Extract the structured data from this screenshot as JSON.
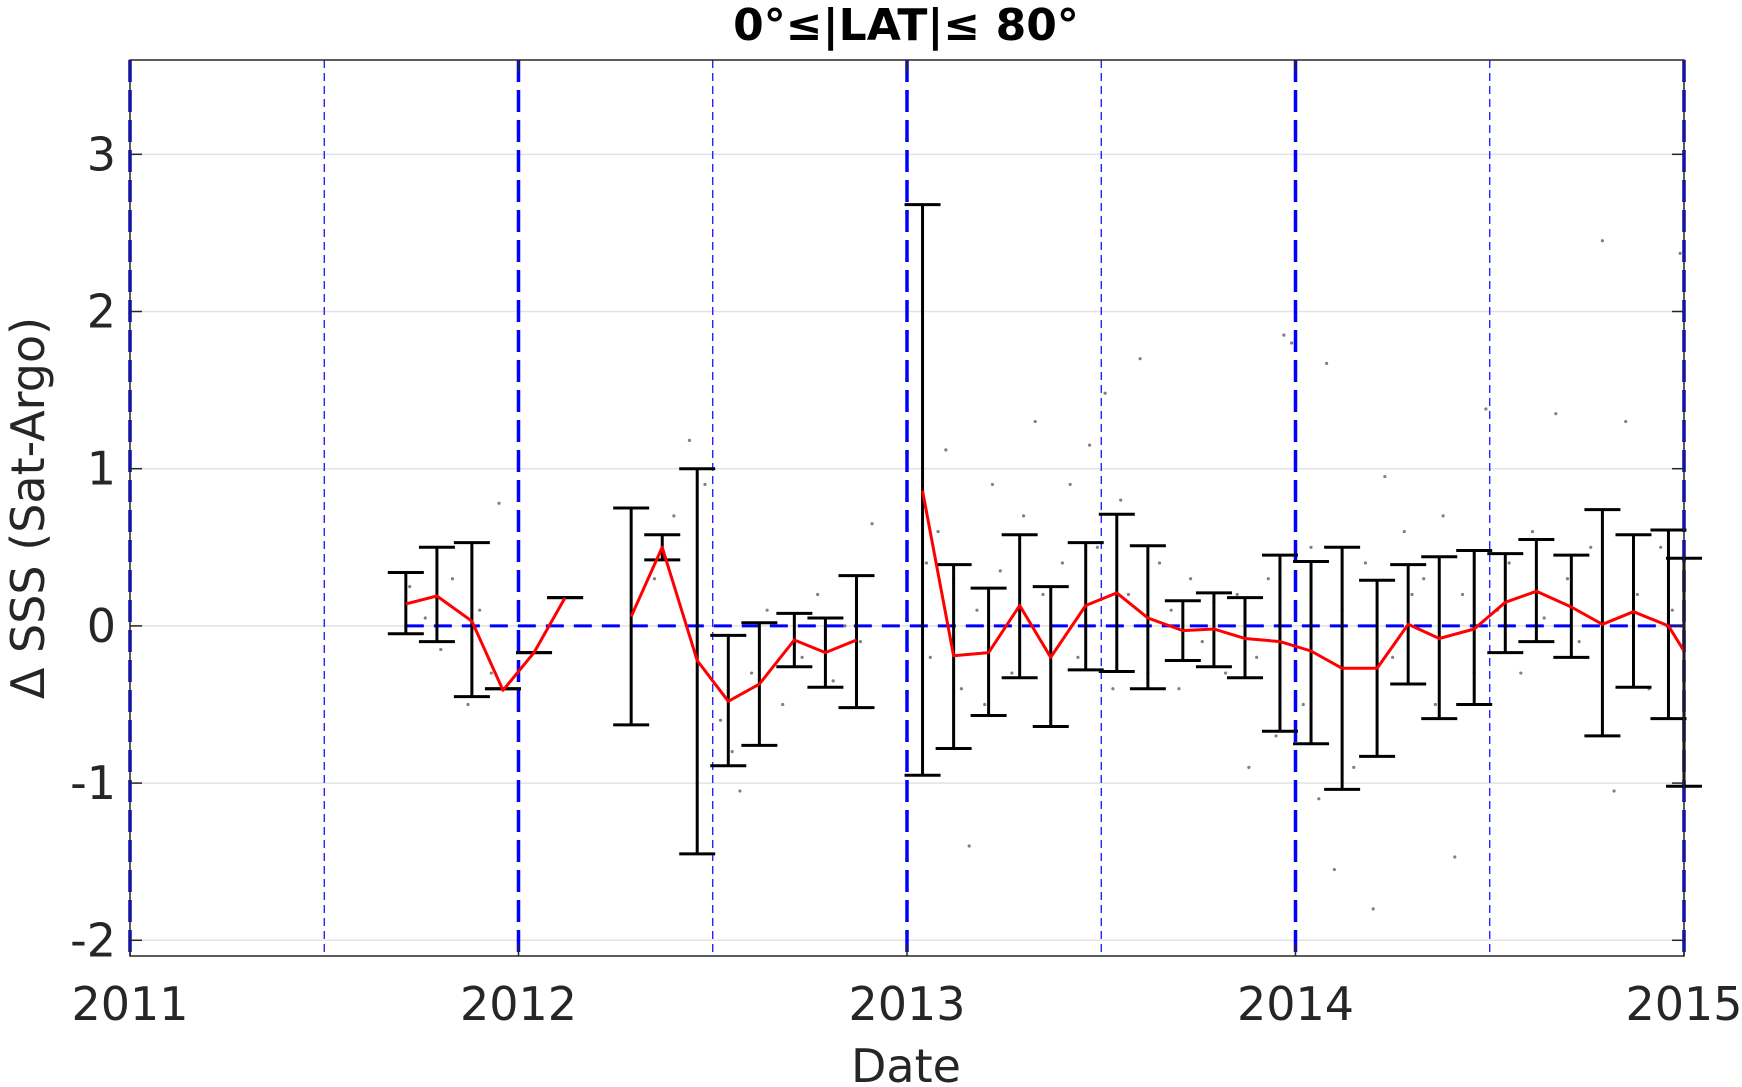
{
  "chart_data": {
    "type": "errorbar",
    "title": "0°≤|LAT|≤ 80°",
    "xlabel": "Date",
    "ylabel": "Δ SSS (Sat-Argo)",
    "xlim": [
      "2011-01-01",
      "2015-01-01"
    ],
    "ylim": [
      -2.1,
      3.6
    ],
    "xticks": [
      "2011",
      "2012",
      "2013",
      "2014",
      "2015"
    ],
    "yticks": [
      -2,
      -1,
      0,
      1,
      2,
      3
    ],
    "ytick_labels": [
      "-2",
      "-1",
      "0",
      "1",
      "2",
      "3"
    ],
    "grid": true,
    "reference_line": {
      "y": 0,
      "color": "#0000ff",
      "style": "dashed"
    },
    "year_lines": [
      "2011",
      "2012",
      "2013",
      "2014",
      "2015"
    ],
    "half_year_lines": [
      "2011.5",
      "2012.5",
      "2013.5",
      "2014.5"
    ],
    "colors": {
      "mean": "#ff0000",
      "errorbar": "#000000",
      "scatter": "#808080",
      "reference": "#0000ff"
    },
    "segments": [
      {
        "x": [
          2011.71,
          2011.79,
          2011.88,
          2011.96,
          2012.04,
          2012.12
        ],
        "mean": [
          0.14,
          0.19,
          0.03,
          -0.41,
          -0.17,
          0.18
        ],
        "err_low": [
          -0.05,
          -0.1,
          -0.45,
          -0.4,
          -0.17,
          0.18
        ],
        "err_high": [
          0.34,
          0.5,
          0.53,
          -0.4,
          -0.17,
          0.18
        ]
      },
      {
        "x": [
          2012.29,
          2012.37,
          2012.46,
          2012.54,
          2012.62,
          2012.71,
          2012.79,
          2012.87
        ],
        "mean": [
          0.06,
          0.5,
          -0.22,
          -0.48,
          -0.37,
          -0.09,
          -0.17,
          -0.09
        ],
        "err_low": [
          -0.63,
          0.42,
          -1.45,
          -0.89,
          -0.76,
          -0.26,
          -0.39,
          -0.52
        ],
        "err_high": [
          0.75,
          0.58,
          1.0,
          -0.06,
          0.02,
          0.08,
          0.05,
          0.32
        ]
      },
      {
        "x": [
          2013.04,
          2013.12,
          2013.21,
          2013.29,
          2013.37,
          2013.46,
          2013.54,
          2013.62,
          2013.71,
          2013.79,
          2013.87,
          2013.96,
          2014.04,
          2014.12,
          2014.21,
          2014.29,
          2014.37,
          2014.46,
          2014.54,
          2014.62,
          2014.71,
          2014.79,
          2014.87,
          2014.96,
          2015.0
        ],
        "mean": [
          0.86,
          -0.19,
          -0.17,
          0.13,
          -0.2,
          0.13,
          0.21,
          0.05,
          -0.03,
          -0.02,
          -0.08,
          -0.1,
          -0.16,
          -0.27,
          -0.27,
          0.01,
          -0.08,
          -0.02,
          0.15,
          0.22,
          0.12,
          0.01,
          0.09,
          0.0,
          -0.16
        ],
        "err_low": [
          -0.95,
          -0.78,
          -0.57,
          -0.33,
          -0.64,
          -0.28,
          -0.29,
          -0.4,
          -0.22,
          -0.26,
          -0.33,
          -0.67,
          -0.75,
          -1.04,
          -0.83,
          -0.37,
          -0.59,
          -0.5,
          -0.17,
          -0.1,
          -0.2,
          -0.7,
          -0.39,
          -0.59,
          -1.02
        ],
        "err_high": [
          2.68,
          0.39,
          0.24,
          0.58,
          0.25,
          0.53,
          0.71,
          0.51,
          0.16,
          0.21,
          0.18,
          0.45,
          0.41,
          0.5,
          0.29,
          0.39,
          0.44,
          0.48,
          0.46,
          0.55,
          0.45,
          0.74,
          0.58,
          0.61,
          0.43
        ]
      }
    ],
    "scatter": [
      [
        2011.72,
        0.25
      ],
      [
        2011.76,
        0.05
      ],
      [
        2011.8,
        -0.15
      ],
      [
        2011.83,
        0.3
      ],
      [
        2011.87,
        -0.5
      ],
      [
        2011.9,
        0.1
      ],
      [
        2011.93,
        -0.3
      ],
      [
        2011.95,
        0.78
      ],
      [
        2012.35,
        0.3
      ],
      [
        2012.4,
        0.7
      ],
      [
        2012.44,
        1.18
      ],
      [
        2012.48,
        0.9
      ],
      [
        2012.52,
        -0.6
      ],
      [
        2012.55,
        -0.8
      ],
      [
        2012.57,
        -1.05
      ],
      [
        2012.6,
        -0.3
      ],
      [
        2012.64,
        0.1
      ],
      [
        2012.68,
        -0.5
      ],
      [
        2012.73,
        -0.2
      ],
      [
        2012.77,
        0.2
      ],
      [
        2012.81,
        -0.35
      ],
      [
        2012.84,
        0.0
      ],
      [
        2012.88,
        -0.1
      ],
      [
        2012.91,
        0.65
      ],
      [
        2013.05,
        0.4
      ],
      [
        2013.06,
        -0.2
      ],
      [
        2013.08,
        0.6
      ],
      [
        2013.1,
        1.12
      ],
      [
        2013.12,
        0.3
      ],
      [
        2013.14,
        -0.4
      ],
      [
        2013.16,
        -1.4
      ],
      [
        2013.18,
        0.1
      ],
      [
        2013.2,
        -0.5
      ],
      [
        2013.22,
        0.9
      ],
      [
        2013.24,
        0.35
      ],
      [
        2013.27,
        -0.3
      ],
      [
        2013.3,
        0.7
      ],
      [
        2013.33,
        1.3
      ],
      [
        2013.35,
        0.2
      ],
      [
        2013.37,
        -0.6
      ],
      [
        2013.4,
        0.4
      ],
      [
        2013.42,
        0.9
      ],
      [
        2013.44,
        -0.2
      ],
      [
        2013.47,
        1.15
      ],
      [
        2013.49,
        0.5
      ],
      [
        2013.51,
        1.48
      ],
      [
        2013.53,
        -0.4
      ],
      [
        2013.55,
        0.8
      ],
      [
        2013.57,
        0.2
      ],
      [
        2013.6,
        1.7
      ],
      [
        2013.62,
        -0.3
      ],
      [
        2013.65,
        0.4
      ],
      [
        2013.68,
        0.1
      ],
      [
        2013.7,
        -0.4
      ],
      [
        2013.73,
        0.3
      ],
      [
        2013.76,
        -0.1
      ],
      [
        2013.79,
        0.15
      ],
      [
        2013.82,
        -0.3
      ],
      [
        2013.85,
        0.2
      ],
      [
        2013.88,
        -0.9
      ],
      [
        2013.9,
        -0.2
      ],
      [
        2013.93,
        0.3
      ],
      [
        2013.95,
        -0.7
      ],
      [
        2013.97,
        1.85
      ],
      [
        2013.99,
        1.8
      ],
      [
        2014.02,
        -0.5
      ],
      [
        2014.04,
        0.5
      ],
      [
        2014.06,
        -1.1
      ],
      [
        2014.08,
        1.67
      ],
      [
        2014.1,
        -1.55
      ],
      [
        2014.12,
        0.1
      ],
      [
        2014.15,
        -0.9
      ],
      [
        2014.18,
        0.4
      ],
      [
        2014.2,
        -1.8
      ],
      [
        2014.23,
        0.95
      ],
      [
        2014.25,
        -0.2
      ],
      [
        2014.28,
        0.6
      ],
      [
        2014.3,
        0.2
      ],
      [
        2014.33,
        0.3
      ],
      [
        2014.36,
        -0.5
      ],
      [
        2014.38,
        0.7
      ],
      [
        2014.41,
        -1.47
      ],
      [
        2014.43,
        0.2
      ],
      [
        2014.46,
        -0.3
      ],
      [
        2014.49,
        1.38
      ],
      [
        2014.52,
        0.1
      ],
      [
        2014.55,
        0.4
      ],
      [
        2014.58,
        -0.3
      ],
      [
        2014.61,
        0.6
      ],
      [
        2014.64,
        0.05
      ],
      [
        2014.67,
        1.35
      ],
      [
        2014.7,
        0.3
      ],
      [
        2014.73,
        -0.1
      ],
      [
        2014.76,
        0.5
      ],
      [
        2014.79,
        2.45
      ],
      [
        2014.82,
        -1.05
      ],
      [
        2014.85,
        1.3
      ],
      [
        2014.88,
        0.2
      ],
      [
        2014.91,
        -0.4
      ],
      [
        2014.94,
        0.5
      ],
      [
        2014.97,
        0.1
      ],
      [
        2014.99,
        2.37
      ]
    ]
  }
}
